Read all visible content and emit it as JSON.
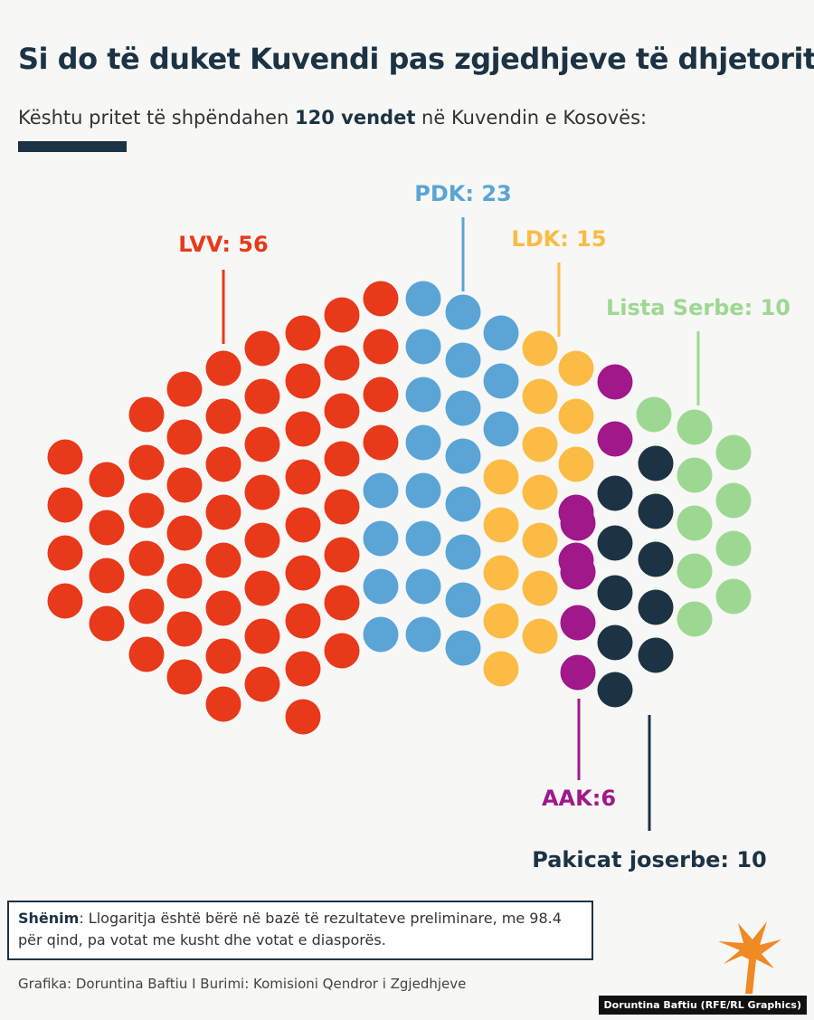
{
  "title": "Si do të duket Kuvendi pas zgjedhjeve të dhjetorit?",
  "subtitle": {
    "prefix": "Kështu pritet të shpëndahen ",
    "bold": "120 vendet",
    "suffix": " në Kuvendin e Kosovës:"
  },
  "note": {
    "label": "Shënim",
    "text": ": Llogaritja është bërë në bazë të rezultateve preliminare, me 98.4 për qind, pa votat me kusht dhe votat e diasporës."
  },
  "source": "Grafika: Doruntina Baftiu I Burimi: Komisioni Qendror i Zgjedhjeve",
  "credit": "Doruntina Baftiu (RFE/RL Graphics)",
  "logo_icon": "rferl-flame-logo-icon",
  "chart_data": {
    "type": "parliament-dot",
    "total_seats": 120,
    "series": [
      {
        "name": "LVV",
        "label": "LVV: 56",
        "values": [
          56
        ],
        "color": "#e8391a"
      },
      {
        "name": "PDK",
        "label": "PDK: 23",
        "values": [
          23
        ],
        "color": "#5aa5d5"
      },
      {
        "name": "LDK",
        "label": "LDK: 15",
        "values": [
          15
        ],
        "color": "#fbbb45"
      },
      {
        "name": "AAK",
        "label": "AAK:6",
        "values": [
          6
        ],
        "color": "#a0188a"
      },
      {
        "name": "Pakicat joserbe",
        "label": "Pakicat joserbe: 10",
        "values": [
          10
        ],
        "color": "#1b3344"
      },
      {
        "name": "Lista Serbe",
        "label": "Lista Serbe: 10",
        "values": [
          10
        ],
        "color": "#9dd892"
      }
    ]
  }
}
